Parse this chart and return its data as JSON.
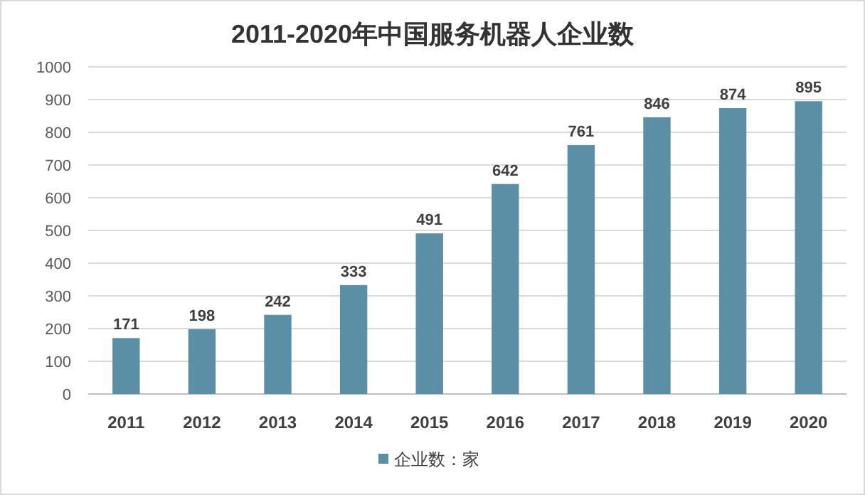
{
  "chart_data": {
    "type": "bar",
    "title": "2011-2020年中国服务机器人企业数",
    "categories": [
      "2011",
      "2012",
      "2013",
      "2014",
      "2015",
      "2016",
      "2017",
      "2018",
      "2019",
      "2020"
    ],
    "series": [
      {
        "name": "企业数：家",
        "color": "#5b8fa6",
        "values": [
          171,
          198,
          242,
          333,
          491,
          642,
          761,
          846,
          874,
          895
        ]
      }
    ],
    "ylim": [
      0,
      1000
    ],
    "yticks": [
      0,
      100,
      200,
      300,
      400,
      500,
      600,
      700,
      800,
      900,
      1000
    ],
    "grid": "y",
    "legend": "bottom",
    "data_labels": true
  }
}
